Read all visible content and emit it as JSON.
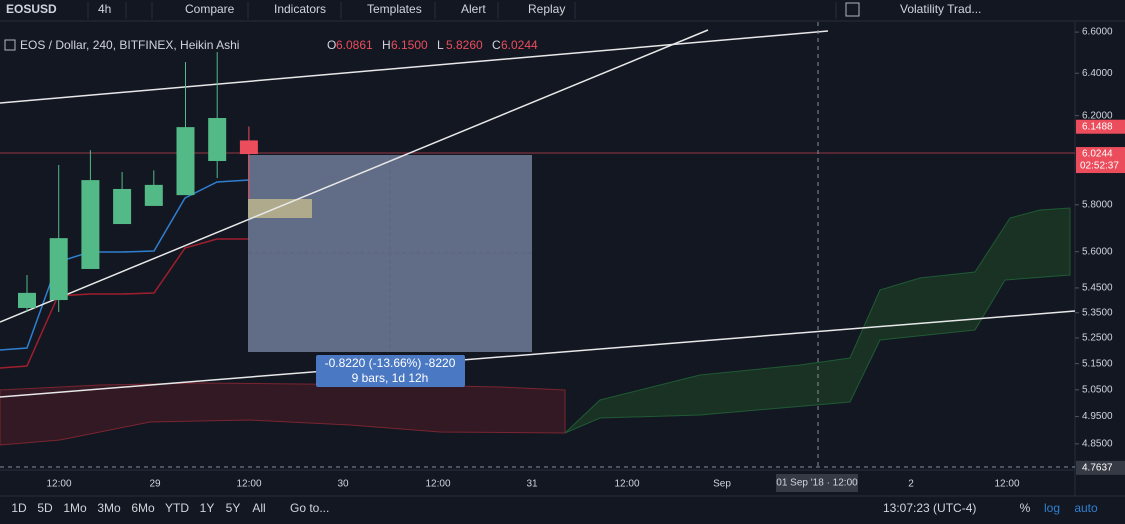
{
  "toolbar": {
    "symbol": "EOSUSD",
    "interval": "4h",
    "items": [
      "Compare",
      "Indicators",
      "Templates",
      "Alert",
      "Replay"
    ],
    "layout": "Volatility Trad..."
  },
  "legend": {
    "title": "EOS / Dollar, 240, BITFINEX, Heikin Ashi",
    "ohlc": [
      {
        "key": "O",
        "value": "6.0861"
      },
      {
        "key": "H",
        "value": "6.1500"
      },
      {
        "key": "L",
        "value": "5.8260"
      },
      {
        "key": "C",
        "value": "6.0244"
      }
    ]
  },
  "chart_data": {
    "type": "candlestick",
    "open": [
      5.369,
      5.401,
      5.528,
      5.717,
      5.795,
      5.842,
      5.993,
      6.0861
    ],
    "high": [
      5.503,
      5.975,
      6.042,
      5.944,
      5.951,
      6.454,
      6.502,
      6.15
    ],
    "low": [
      5.353,
      5.353,
      5.528,
      5.717,
      5.795,
      5.842,
      5.917,
      5.826
    ],
    "close": [
      5.43,
      5.657,
      5.908,
      5.869,
      5.887,
      6.147,
      6.189,
      6.0244
    ],
    "up_color": "#53b987",
    "down_color": "#eb4d5c",
    "log": true,
    "ylim": [
      4.756,
      6.65
    ],
    "yticks": [
      {
        "value": 6.6,
        "label": "6.6000"
      },
      {
        "value": 6.4,
        "label": "6.4000"
      },
      {
        "value": 6.2,
        "label": "6.2000"
      },
      {
        "value": 5.8,
        "label": "5.8000"
      },
      {
        "value": 5.6,
        "label": "5.6000"
      },
      {
        "value": 5.45,
        "label": "5.4500"
      },
      {
        "value": 5.35,
        "label": "5.3500"
      },
      {
        "value": 5.25,
        "label": "5.2500"
      },
      {
        "value": 5.15,
        "label": "5.1500"
      },
      {
        "value": 5.05,
        "label": "5.0500"
      },
      {
        "value": 4.95,
        "label": "4.9500"
      },
      {
        "value": 4.85,
        "label": "4.8500"
      }
    ],
    "price_markers": [
      {
        "value": 6.1488,
        "label": "6.1488",
        "color": "#eb4d5c"
      },
      {
        "value": 6.0244,
        "label": "6.0244",
        "color": "#eb4d5c",
        "countdown": "02:52:37"
      },
      {
        "value": 4.7637,
        "label": "4.7637",
        "color": "#363a45"
      }
    ]
  },
  "time_axis": [
    "12:00",
    "29",
    "12:00",
    "30",
    "12:00",
    "31",
    "12:00",
    "Sep",
    "2",
    "12:00"
  ],
  "crosshair_date": "01 Sep '18 · 12:00",
  "measure": {
    "line1": "-0.8220 (-13.66%) -8220",
    "line2": "9 bars, 1d 12h"
  },
  "bottom_bar": {
    "ranges": [
      "1D",
      "5D",
      "1Mo",
      "3Mo",
      "6Mo",
      "YTD",
      "1Y",
      "5Y",
      "All"
    ],
    "goto": "Go to...",
    "clock": "13:07:23 (UTC-4)",
    "scale_options": [
      "%",
      "log",
      "auto"
    ]
  }
}
